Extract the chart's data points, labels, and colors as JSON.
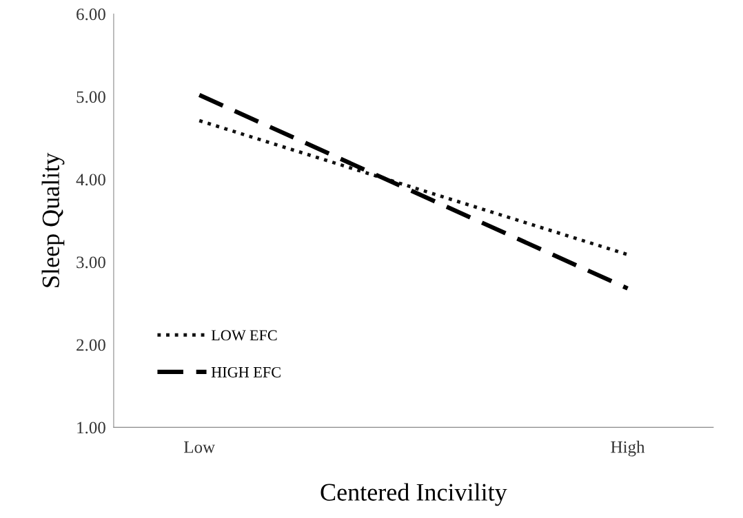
{
  "chart_data": {
    "type": "line",
    "xlabel": "Centered Incivility",
    "ylabel": "Sleep Quality",
    "categories": [
      "Low",
      "High"
    ],
    "ylim": [
      1,
      6
    ],
    "yticks": [
      {
        "value": 1,
        "label": "1.00"
      },
      {
        "value": 2,
        "label": "2.00"
      },
      {
        "value": 3,
        "label": "3.00"
      },
      {
        "value": 4,
        "label": "4.00"
      },
      {
        "value": 5,
        "label": "5.00"
      },
      {
        "value": 6,
        "label": "6.00"
      }
    ],
    "series": [
      {
        "name": "LOW EFC",
        "color": "#111111",
        "line_style": "dotted",
        "values": [
          4.71,
          3.09
        ]
      },
      {
        "name": "HIGH EFC",
        "color": "#000000",
        "line_style": "dashed",
        "values": [
          5.02,
          2.68
        ]
      }
    ],
    "grid": false,
    "legend": "bottom left",
    "marker": "none"
  }
}
